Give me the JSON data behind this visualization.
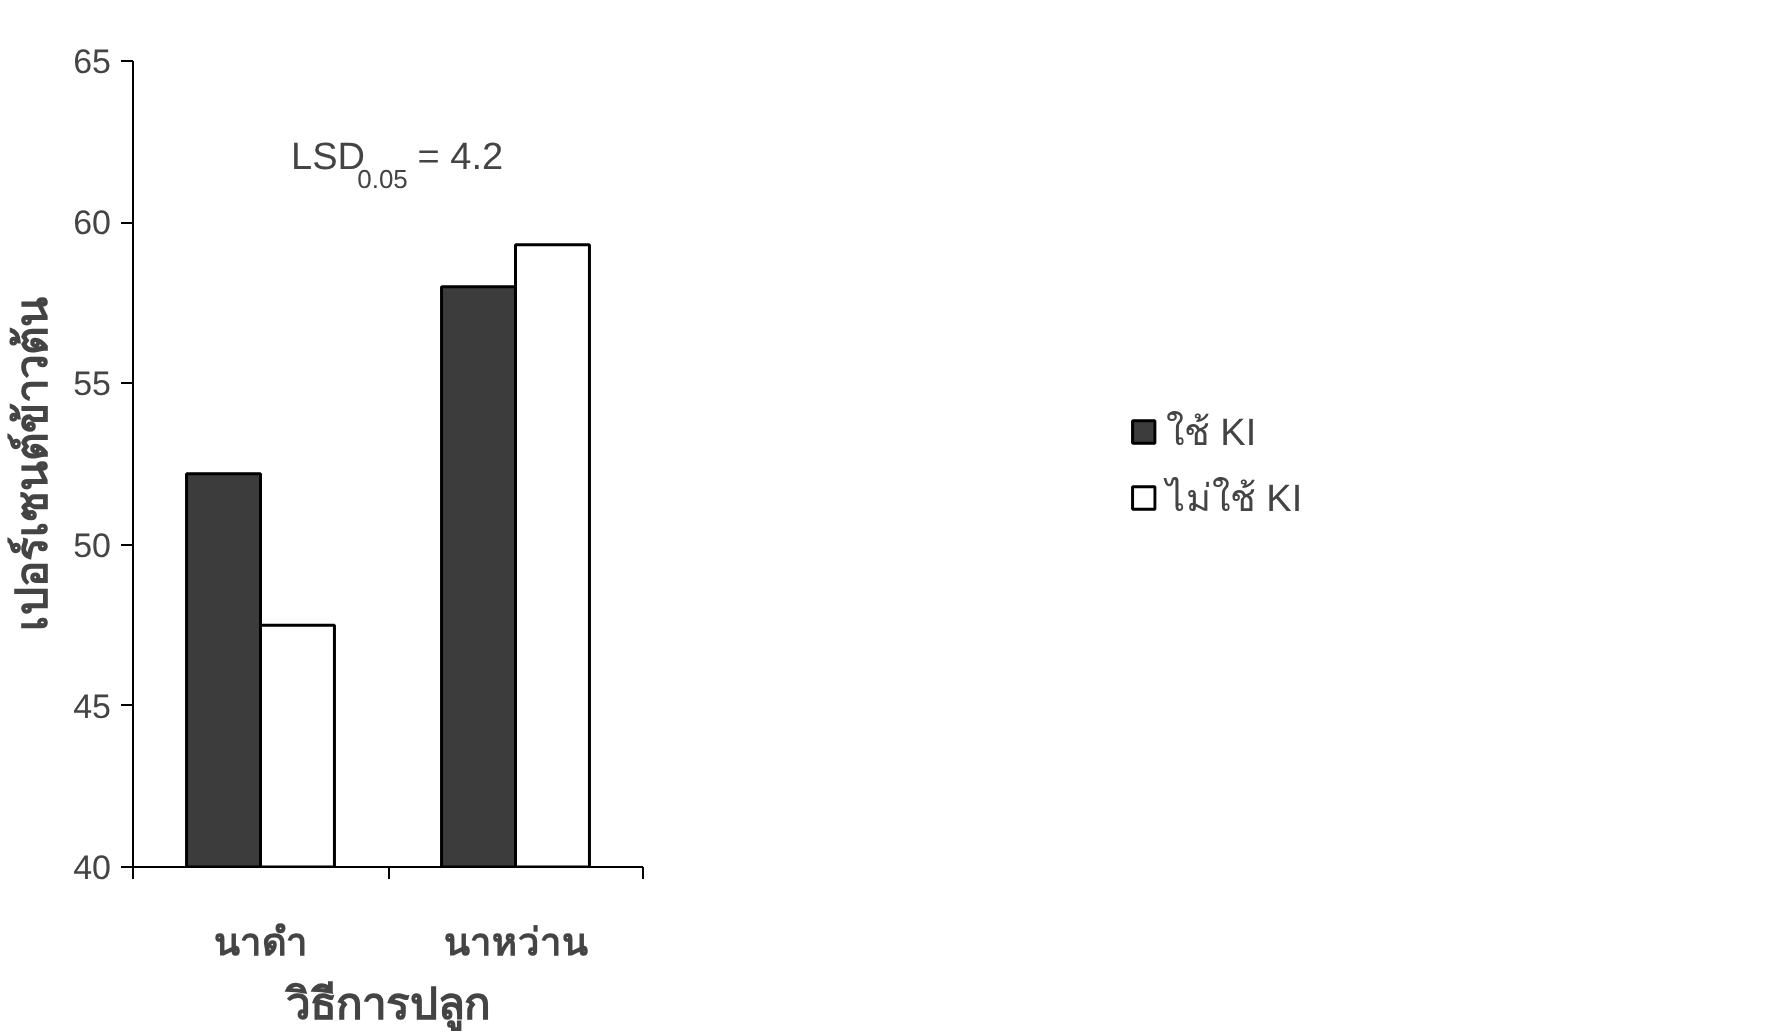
{
  "chart_data": {
    "type": "bar",
    "categories": [
      "นาดำ",
      "นาหว่าน"
    ],
    "xlabel": "วิธีการปลูก",
    "ylabel": "เปอร์เซนต์ข้าวต้น",
    "series": [
      {
        "name": "ใช้ KI",
        "color": "#3c3c3c",
        "values": [
          52.2,
          58.0
        ]
      },
      {
        "name": "ไม่ใช้ KI",
        "color": "#ffffff",
        "values": [
          47.5,
          59.3
        ]
      }
    ],
    "ylim": [
      40,
      65
    ],
    "yticks": [
      40,
      45,
      50,
      55,
      60,
      65
    ],
    "annotations": [
      "LSD$_{0.05}$ = 4.2"
    ],
    "legend": "right",
    "grid": false
  }
}
